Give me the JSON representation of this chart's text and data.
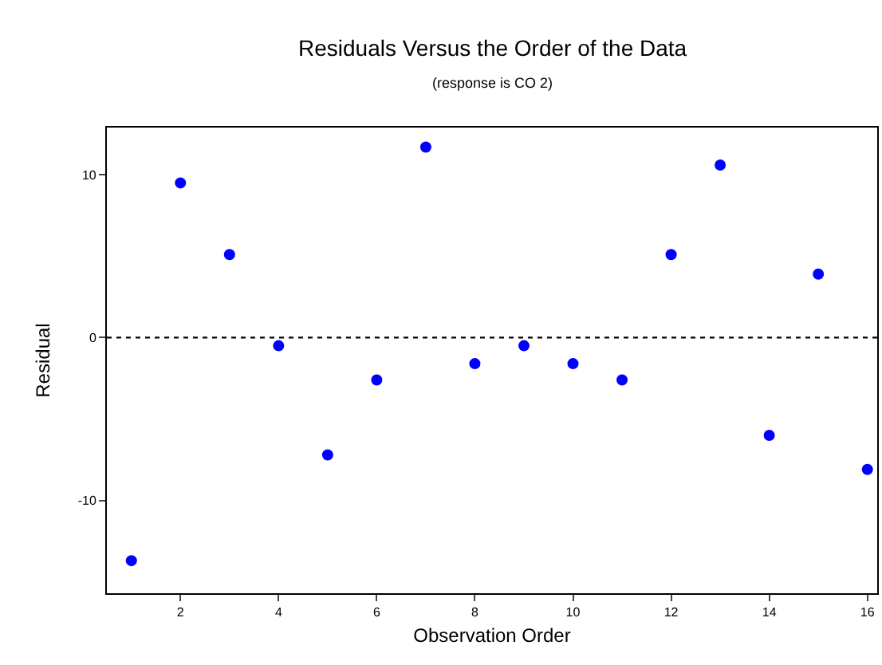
{
  "chart_data": {
    "type": "scatter",
    "title": "Residuals Versus the Order of the Data",
    "subtitle": "(response is CO 2)",
    "xlabel": "Observation Order",
    "ylabel": "Residual",
    "x": [
      1,
      2,
      3,
      4,
      5,
      6,
      7,
      8,
      9,
      10,
      11,
      12,
      13,
      14,
      15,
      16
    ],
    "series": [
      {
        "color": "#0000ff",
        "values": [
          -13.7,
          9.5,
          5.1,
          -0.5,
          -7.2,
          -2.6,
          11.7,
          -1.6,
          -0.5,
          -1.6,
          -2.6,
          5.1,
          10.6,
          -6.0,
          3.9,
          -8.1
        ]
      }
    ],
    "xlim": [
      0.5,
      16.2
    ],
    "xticks": [
      2,
      4,
      6,
      8,
      10,
      12,
      14,
      16
    ],
    "ylim": [
      -15.7,
      12.9
    ],
    "yticks": [
      -10,
      0,
      10
    ],
    "ref_lines": [
      {
        "axis": "y",
        "value": 0,
        "line_style": "dotted",
        "color": "#000000"
      }
    ],
    "marker": "circle"
  }
}
